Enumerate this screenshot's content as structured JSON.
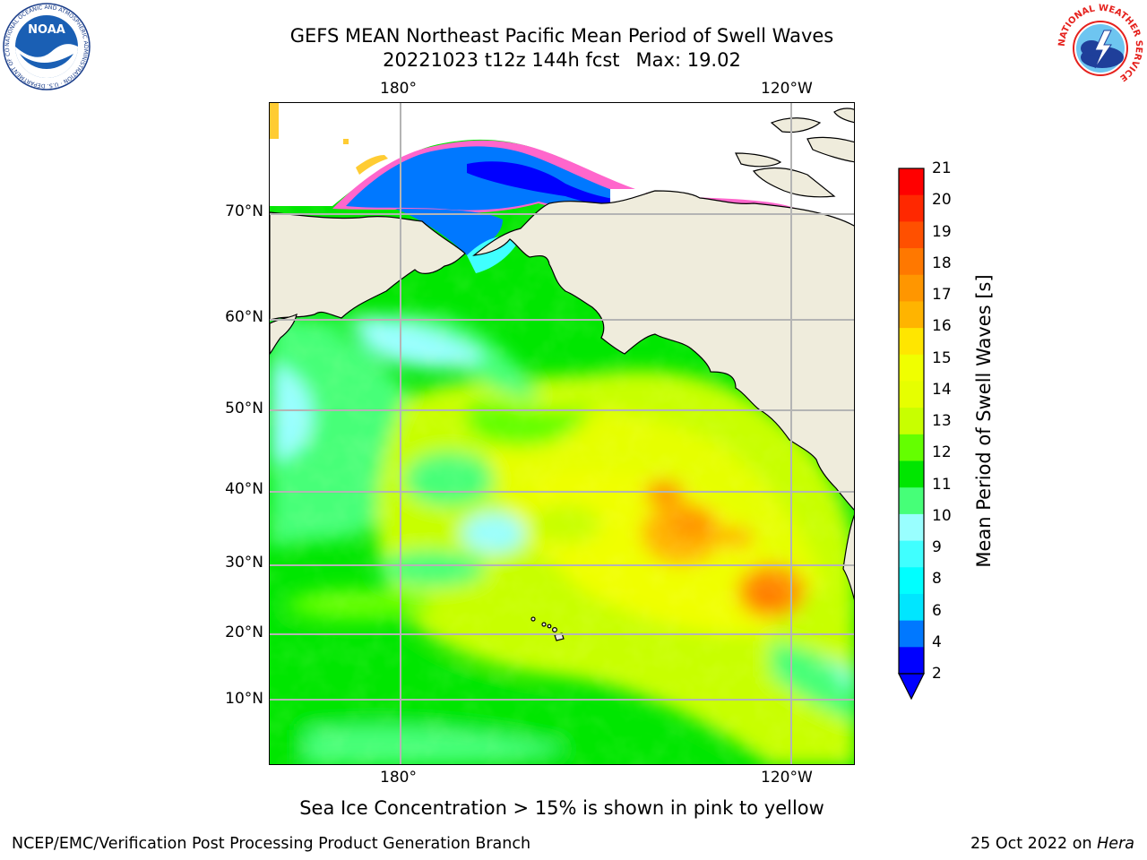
{
  "header": {
    "title": "GEFS MEAN Northeast Pacific Mean Period of Swell Waves",
    "run": "20221023 t12z 144h fcst",
    "max_label": "Max: 19.02"
  },
  "map": {
    "region": "Northeast Pacific",
    "variable": "Mean Period of Swell Waves",
    "units": "s",
    "max_value": 19.02,
    "lon_ticks_top": [
      "180°",
      "120°W"
    ],
    "lon_ticks_bottom": [
      "180°",
      "120°W"
    ],
    "lat_ticks": [
      "70°N",
      "60°N",
      "50°N",
      "40°N",
      "30°N",
      "20°N",
      "10°N"
    ],
    "grid": true,
    "land_color": "#efecdc",
    "sea_ice_colors": [
      "#ff66cc",
      "#ffcc33"
    ]
  },
  "colorbar": {
    "title": "Mean Period of Swell Waves [s]",
    "labels": [
      "21",
      "20",
      "19",
      "18",
      "17",
      "16",
      "15",
      "14",
      "13",
      "12",
      "11",
      "10",
      "9",
      "8",
      "6",
      "4",
      "2"
    ],
    "colors": [
      "#ff0000",
      "#ff2800",
      "#ff5000",
      "#ff7800",
      "#ff9600",
      "#ffb400",
      "#ffe600",
      "#f0ff00",
      "#e6ff00",
      "#c8ff00",
      "#64ff00",
      "#00e600",
      "#46ff78",
      "#99ffff",
      "#40ffff",
      "#00ffff",
      "#00e6ff",
      "#0078ff",
      "#0000ff"
    ],
    "extend": "min"
  },
  "notes": {
    "sea_ice": "Sea Ice Concentration > 15% is shown in pink to yellow"
  },
  "footer": {
    "left": "NCEP/EMC/Verification Post Processing Product Generation Branch",
    "date": "25 Oct 2022 on",
    "machine": "Hera"
  },
  "logos": {
    "left": "NOAA",
    "left_ring": "NATIONAL OCEANIC AND ATMOSPHERIC ADMINISTRATION · U.S. DEPARTMENT OF COMMERCE",
    "right_ring": "NATIONAL WEATHER SERVICE"
  }
}
